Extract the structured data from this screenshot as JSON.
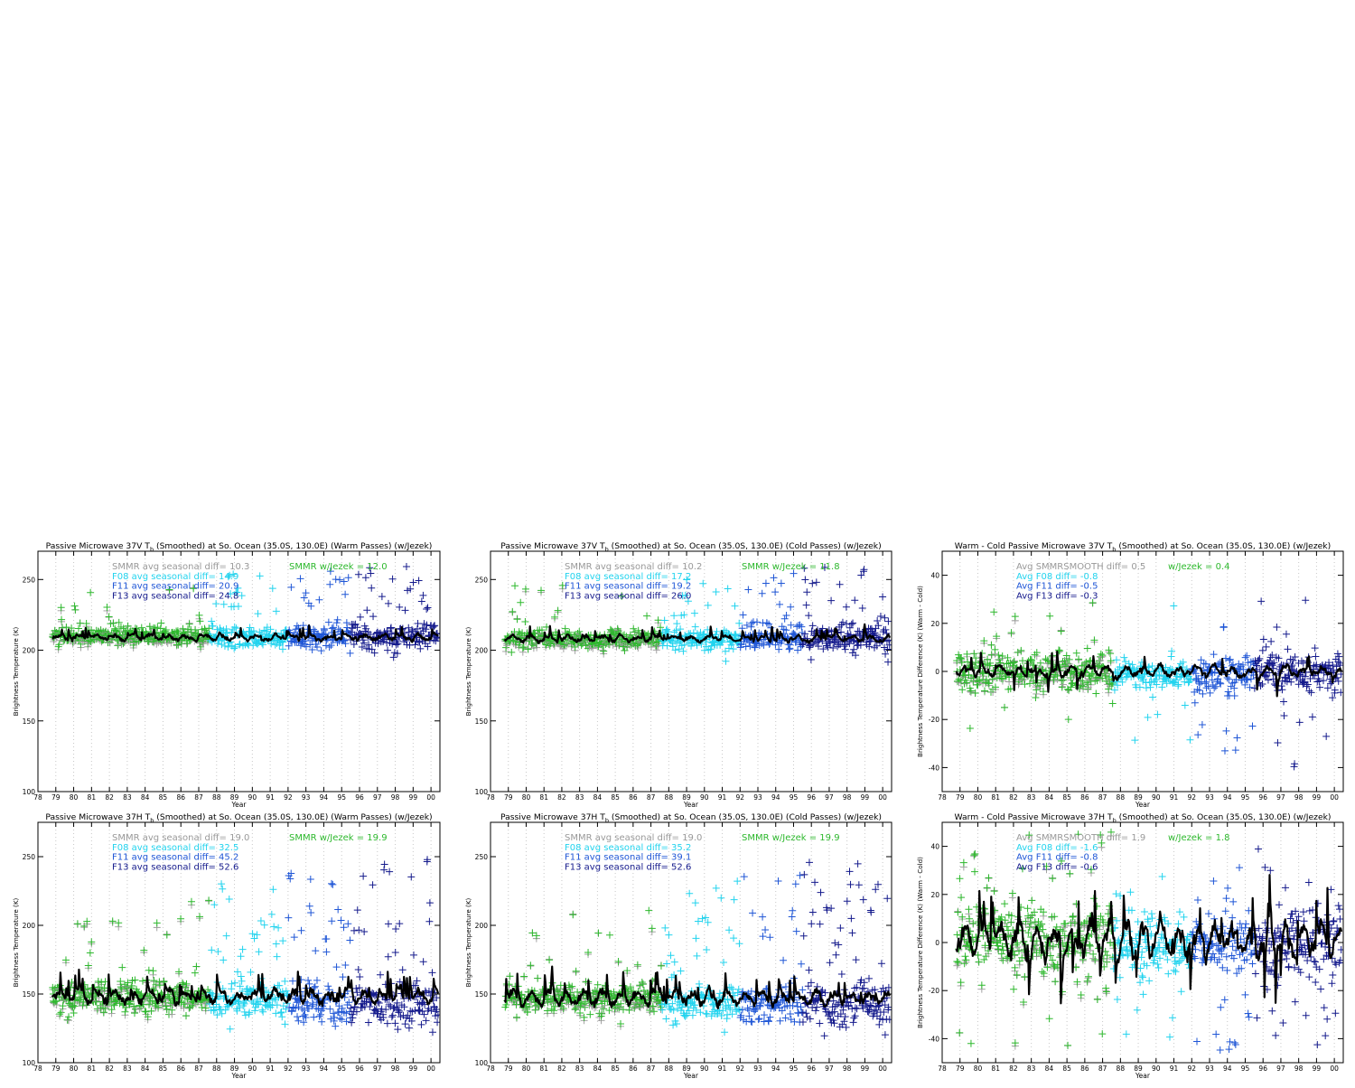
{
  "x_label": "Year",
  "x_ticks": [
    "78",
    "79",
    "80",
    "81",
    "82",
    "83",
    "84",
    "85",
    "86",
    "87",
    "88",
    "89",
    "90",
    "91",
    "92",
    "93",
    "94",
    "95",
    "96",
    "97",
    "98",
    "99",
    "00"
  ],
  "colors": {
    "smmr_gray": "#999999",
    "smmr_green": "#2db82d",
    "f08_cyan": "#22d3ee",
    "f11_blue": "#1f56d6",
    "f13_navy": "#141a8c",
    "smoothed_black": "#000000",
    "grid_dotted": "#c8c8c8"
  },
  "chart_data": [
    {
      "id": "p1",
      "type": "scatter",
      "title": "Passive Microwave 37V T_b (Smoothed) at So. Ocean (35.0S, 130.0E) (Warm Passes) (w/Jezek)",
      "title_parts": [
        "Passive Microwave 37V T",
        "b",
        " (Smoothed) at So. Ocean (35.0S, 130.0E) (Warm Passes) (w/Jezek)"
      ],
      "ylabel": "Brightness Temperature (K)",
      "xlabel": "Year",
      "xlim": [
        78,
        100.5
      ],
      "ylim": [
        100,
        270
      ],
      "yticks": [
        100,
        150,
        200,
        250
      ],
      "annotations": [
        {
          "text": "SMMR avg seasonal diff=  10.3",
          "color": "#999999"
        },
        {
          "text": "F08 avg seasonal diff=  14.9",
          "color": "#22d3ee"
        },
        {
          "text": "F11 avg seasonal diff=  20.9",
          "color": "#1f56d6"
        },
        {
          "text": "F13 avg seasonal diff=  24.8",
          "color": "#141a8c"
        }
      ],
      "extra_annotation": {
        "text": "SMMR w/Jezek =  12.0",
        "color": "#2db82d"
      },
      "series": [
        {
          "key": "SMMR",
          "period": [
            78.8,
            87.6
          ],
          "base": 210,
          "spread": 6,
          "outlier_rate": 0.06,
          "outlier_max": 38
        },
        {
          "key": "F08",
          "period": [
            87.6,
            92.0
          ],
          "base": 209,
          "spread": 7,
          "outlier_rate": 0.12,
          "outlier_max": 45
        },
        {
          "key": "F11",
          "period": [
            92.0,
            95.5
          ],
          "base": 210,
          "spread": 8,
          "outlier_rate": 0.12,
          "outlier_max": 48
        },
        {
          "key": "F13",
          "period": [
            95.5,
            100.4
          ],
          "base": 210,
          "spread": 9,
          "outlier_rate": 0.14,
          "outlier_max": 50
        }
      ],
      "smoothed": {
        "base": 209,
        "amplitude": 4
      }
    },
    {
      "id": "p2",
      "type": "scatter",
      "title": "Passive Microwave 37V T_b (Smoothed) at So. Ocean (35.0S, 130.0E) (Cold Passes) (w/Jezek)",
      "title_parts": [
        "Passive Microwave 37V T",
        "b",
        " (Smoothed) at So. Ocean (35.0S, 130.0E) (Cold Passes) (w/Jezek)"
      ],
      "ylabel": "Brightness Temperature (K)",
      "xlabel": "Year",
      "xlim": [
        78,
        100.5
      ],
      "ylim": [
        100,
        270
      ],
      "yticks": [
        100,
        150,
        200,
        250
      ],
      "annotations": [
        {
          "text": "SMMR avg seasonal diff=  10.2",
          "color": "#999999"
        },
        {
          "text": "F08 avg seasonal diff=  17.2",
          "color": "#22d3ee"
        },
        {
          "text": "F11 avg seasonal diff=  19.2",
          "color": "#1f56d6"
        },
        {
          "text": "F13 avg seasonal diff=  26.0",
          "color": "#141a8c"
        }
      ],
      "extra_annotation": {
        "text": "SMMR w/Jezek =  11.8",
        "color": "#2db82d"
      },
      "series": [
        {
          "key": "SMMR",
          "period": [
            78.8,
            87.6
          ],
          "base": 208,
          "spread": 6,
          "outlier_rate": 0.06,
          "outlier_max": 38
        },
        {
          "key": "F08",
          "period": [
            87.6,
            92.0
          ],
          "base": 208,
          "spread": 7,
          "outlier_rate": 0.12,
          "outlier_max": 42
        },
        {
          "key": "F11",
          "period": [
            92.0,
            95.5
          ],
          "base": 209,
          "spread": 8,
          "outlier_rate": 0.12,
          "outlier_max": 46
        },
        {
          "key": "F13",
          "period": [
            95.5,
            100.4
          ],
          "base": 209,
          "spread": 9,
          "outlier_rate": 0.14,
          "outlier_max": 52
        }
      ],
      "smoothed": {
        "base": 208,
        "amplitude": 4
      }
    },
    {
      "id": "p3",
      "type": "scatter",
      "title": "Warm - Cold Passive Microwave 37V T_b (Smoothed) at So. Ocean (35.0S, 130.0E) (w/Jezek)",
      "title_parts": [
        "Warm - Cold Passive Microwave 37V T",
        "b",
        " (Smoothed) at So. Ocean (35.0S, 130.0E) (w/Jezek)"
      ],
      "ylabel": "Brightness Temperature Difference (K) (Warm - Cold)",
      "xlabel": "Year",
      "xlim": [
        78,
        100.5
      ],
      "ylim": [
        -50,
        50
      ],
      "yticks": [
        -40,
        -20,
        0,
        20,
        40
      ],
      "annotations": [
        {
          "text": "Avg SMMRSMOOTH diff=    0.5",
          "color": "#999999"
        },
        {
          "text": "Avg F08 diff=   -0.8",
          "color": "#22d3ee"
        },
        {
          "text": "Avg F11 diff=   -0.5",
          "color": "#1f56d6"
        },
        {
          "text": "Avg F13 diff=   -0.3",
          "color": "#141a8c"
        }
      ],
      "extra_annotation": {
        "text": "w/Jezek =   0.4",
        "color": "#2db82d"
      },
      "series": [
        {
          "key": "SMMR",
          "period": [
            78.8,
            87.6
          ],
          "base": 0,
          "spread": 8,
          "outlier_rate": 0.1,
          "outlier_max": 30
        },
        {
          "key": "F08",
          "period": [
            87.6,
            92.0
          ],
          "base": -1,
          "spread": 5,
          "outlier_rate": 0.1,
          "outlier_max": 30
        },
        {
          "key": "F11",
          "period": [
            92.0,
            95.5
          ],
          "base": -1,
          "spread": 7,
          "outlier_rate": 0.15,
          "outlier_max": 35
        },
        {
          "key": "F13",
          "period": [
            95.5,
            100.4
          ],
          "base": 0,
          "spread": 8,
          "outlier_rate": 0.16,
          "outlier_max": 40
        }
      ],
      "smoothed": {
        "base": 0,
        "amplitude": 4
      }
    },
    {
      "id": "p4",
      "type": "scatter",
      "title": "Passive Microwave 37H T_b (Smoothed) at So. Ocean (35.0S, 130.0E) (Warm Passes) (w/Jezek)",
      "title_parts": [
        "Passive Microwave 37H T",
        "b",
        " (Smoothed) at So. Ocean (35.0S, 130.0E) (Warm Passes) (w/Jezek)"
      ],
      "ylabel": "Brightness Temperature (K)",
      "xlabel": "Year",
      "xlim": [
        78,
        100.5
      ],
      "ylim": [
        100,
        275
      ],
      "yticks": [
        100,
        150,
        200,
        250
      ],
      "annotations": [
        {
          "text": "SMMR avg seasonal diff=  19.0",
          "color": "#999999"
        },
        {
          "text": "F08 avg seasonal diff=  32.5",
          "color": "#22d3ee"
        },
        {
          "text": "F11 avg seasonal diff=  45.2",
          "color": "#1f56d6"
        },
        {
          "text": "F13 avg seasonal diff=  52.6",
          "color": "#141a8c"
        }
      ],
      "extra_annotation": {
        "text": "SMMR w/Jezek =  19.9",
        "color": "#2db82d"
      },
      "series": [
        {
          "key": "SMMR",
          "period": [
            78.8,
            87.6
          ],
          "base": 148,
          "spread": 10,
          "outlier_rate": 0.1,
          "outlier_max": 75
        },
        {
          "key": "F08",
          "period": [
            87.6,
            92.0
          ],
          "base": 144,
          "spread": 12,
          "outlier_rate": 0.18,
          "outlier_max": 95
        },
        {
          "key": "F11",
          "period": [
            92.0,
            95.5
          ],
          "base": 144,
          "spread": 14,
          "outlier_rate": 0.2,
          "outlier_max": 100
        },
        {
          "key": "F13",
          "period": [
            95.5,
            100.4
          ],
          "base": 143,
          "spread": 15,
          "outlier_rate": 0.22,
          "outlier_max": 110
        }
      ],
      "smoothed": {
        "base": 148,
        "amplitude": 9
      }
    },
    {
      "id": "p5",
      "type": "scatter",
      "title": "Passive Microwave 37H T_b (Smoothed) at So. Ocean (35.0S, 130.0E) (Cold Passes) (w/Jezek)",
      "title_parts": [
        "Passive Microwave 37H T",
        "b",
        " (Smoothed) at So. Ocean (35.0S, 130.0E) (Cold Passes) (w/Jezek)"
      ],
      "ylabel": "Brightness Temperature (K)",
      "xlabel": "Year",
      "xlim": [
        78,
        100.5
      ],
      "ylim": [
        100,
        275
      ],
      "yticks": [
        100,
        150,
        200,
        250
      ],
      "annotations": [
        {
          "text": "SMMR avg seasonal diff=  19.0",
          "color": "#999999"
        },
        {
          "text": "F08 avg seasonal diff=  35.2",
          "color": "#22d3ee"
        },
        {
          "text": "F11 avg seasonal diff=  39.1",
          "color": "#1f56d6"
        },
        {
          "text": "F13 avg seasonal diff=  52.6",
          "color": "#141a8c"
        }
      ],
      "extra_annotation": {
        "text": "SMMR w/Jezek =  19.9",
        "color": "#2db82d"
      },
      "series": [
        {
          "key": "SMMR",
          "period": [
            78.8,
            87.6
          ],
          "base": 147,
          "spread": 10,
          "outlier_rate": 0.1,
          "outlier_max": 70
        },
        {
          "key": "F08",
          "period": [
            87.6,
            92.0
          ],
          "base": 143,
          "spread": 12,
          "outlier_rate": 0.18,
          "outlier_max": 90
        },
        {
          "key": "F11",
          "period": [
            92.0,
            95.5
          ],
          "base": 143,
          "spread": 13,
          "outlier_rate": 0.2,
          "outlier_max": 95
        },
        {
          "key": "F13",
          "period": [
            95.5,
            100.4
          ],
          "base": 142,
          "spread": 15,
          "outlier_rate": 0.22,
          "outlier_max": 110
        }
      ],
      "smoothed": {
        "base": 147,
        "amplitude": 9
      }
    },
    {
      "id": "p6",
      "type": "scatter",
      "title": "Warm - Cold Passive Microwave 37H T_b (Smoothed) at So. Ocean (35.0S, 130.0E) (w/Jezek)",
      "title_parts": [
        "Warm - Cold Passive Microwave 37H T",
        "b",
        " (Smoothed) at So. Ocean (35.0S, 130.0E) (w/Jezek)"
      ],
      "ylabel": "Brightness Temperature Difference (K) (Warm - Cold)",
      "xlabel": "Year",
      "xlim": [
        78,
        100.5
      ],
      "ylim": [
        -50,
        50
      ],
      "yticks": [
        -40,
        -20,
        0,
        20,
        40
      ],
      "annotations": [
        {
          "text": "Avg SMMRSMOOTH diff=    1.9",
          "color": "#999999"
        },
        {
          "text": "Avg F08 diff=   -1.6",
          "color": "#22d3ee"
        },
        {
          "text": "Avg F11 diff=   -0.8",
          "color": "#1f56d6"
        },
        {
          "text": "Avg F13 diff=   -0.6",
          "color": "#141a8c"
        }
      ],
      "extra_annotation": {
        "text": "w/Jezek =   1.8",
        "color": "#2db82d"
      },
      "series": [
        {
          "key": "SMMR",
          "period": [
            78.8,
            87.6
          ],
          "base": 2,
          "spread": 14,
          "outlier_rate": 0.15,
          "outlier_max": 45
        },
        {
          "key": "F08",
          "period": [
            87.6,
            92.0
          ],
          "base": -2,
          "spread": 10,
          "outlier_rate": 0.15,
          "outlier_max": 40
        },
        {
          "key": "F11",
          "period": [
            92.0,
            95.5
          ],
          "base": -1,
          "spread": 12,
          "outlier_rate": 0.2,
          "outlier_max": 45
        },
        {
          "key": "F13",
          "period": [
            95.5,
            100.4
          ],
          "base": -1,
          "spread": 13,
          "outlier_rate": 0.2,
          "outlier_max": 48
        }
      ],
      "smoothed": {
        "base": 1,
        "amplitude": 12
      }
    }
  ]
}
